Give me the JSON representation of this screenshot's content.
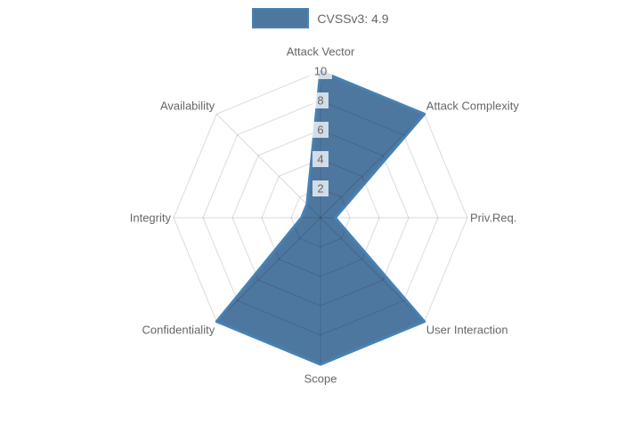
{
  "legend": {
    "label": "CVSSv3: 4.9"
  },
  "chart_data": {
    "type": "radar",
    "title": "",
    "categories": [
      "Attack Vector",
      "Attack Complexity",
      "Priv.Req.",
      "User Interaction",
      "Scope",
      "Confidentiality",
      "Integrity",
      "Availability"
    ],
    "series": [
      {
        "name": "CVSSv3: 4.9",
        "values": [
          10,
          10,
          1,
          10,
          10,
          10,
          1.3,
          1.3
        ]
      }
    ],
    "radial_ticks": [
      2,
      4,
      6,
      8,
      10
    ],
    "rlim": [
      0,
      10
    ],
    "grid": "polygon",
    "legend_position": "top",
    "colors": {
      "fill": "rgba(34,85,136,0.8)",
      "border": "#4682b4",
      "grid": "rgba(0,0,0,0.14)",
      "tick_text": "#666666",
      "tick_backdrop": "rgba(255,255,255,0.75)",
      "label_text": "#666666"
    }
  }
}
